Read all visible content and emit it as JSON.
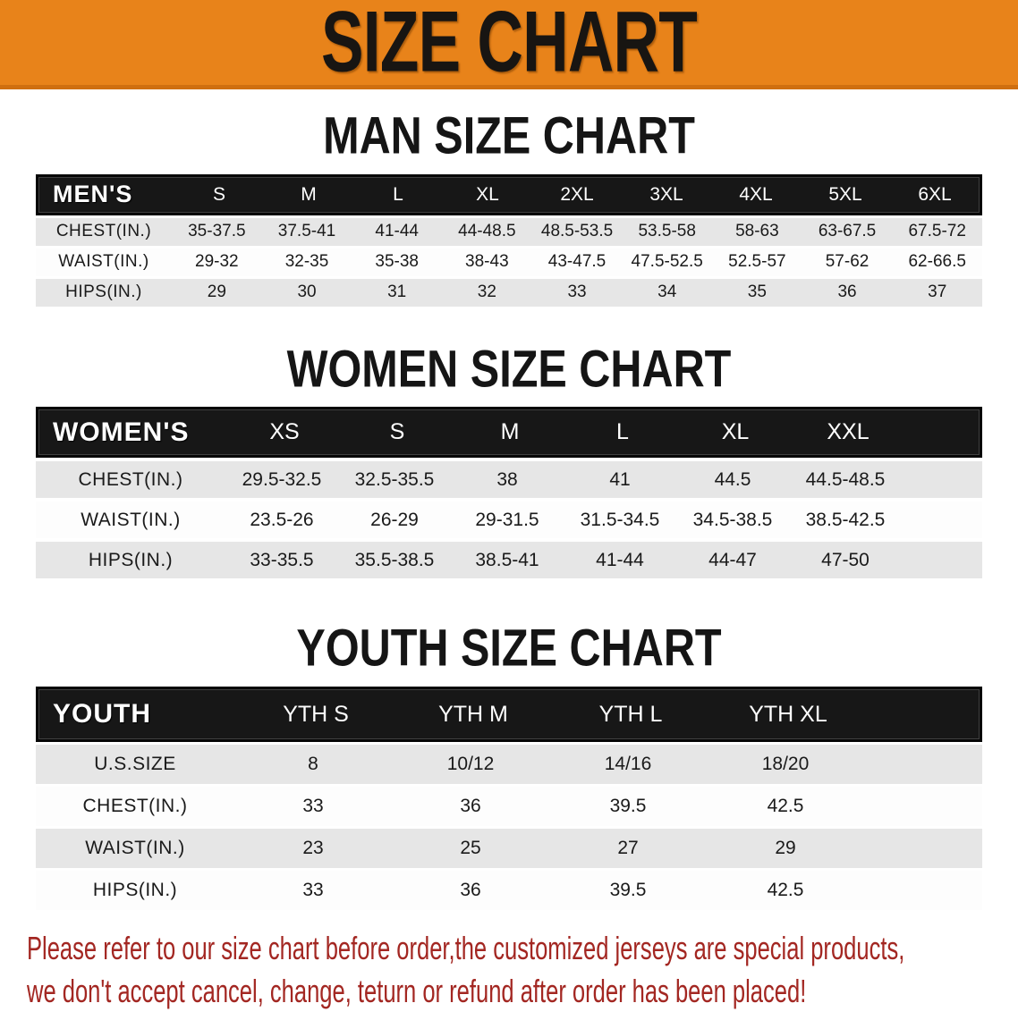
{
  "banner": {
    "title": "SIZE CHART",
    "bg_color": "#E8831A"
  },
  "men": {
    "heading": "MAN SIZE CHART",
    "corner_label": "MEN'S",
    "sizes": [
      "S",
      "M",
      "L",
      "XL",
      "2XL",
      "3XL",
      "4XL",
      "5XL",
      "6XL"
    ],
    "rows": [
      {
        "label": "CHEST(IN.)",
        "values": [
          "35-37.5",
          "37.5-41",
          "41-44",
          "44-48.5",
          "48.5-53.5",
          "53.5-58",
          "58-63",
          "63-67.5",
          "67.5-72"
        ]
      },
      {
        "label": "WAIST(IN.)",
        "values": [
          "29-32",
          "32-35",
          "35-38",
          "38-43",
          "43-47.5",
          "47.5-52.5",
          "52.5-57",
          "57-62",
          "62-66.5"
        ]
      },
      {
        "label": "HIPS(IN.)",
        "values": [
          "29",
          "30",
          "31",
          "32",
          "33",
          "34",
          "35",
          "36",
          "37"
        ]
      }
    ]
  },
  "women": {
    "heading": "WOMEN SIZE CHART",
    "corner_label": "WOMEN'S",
    "sizes": [
      "XS",
      "S",
      "M",
      "L",
      "XL",
      "XXL"
    ],
    "rows": [
      {
        "label": "CHEST(IN.)",
        "values": [
          "29.5-32.5",
          "32.5-35.5",
          "38",
          "41",
          "44.5",
          "44.5-48.5"
        ]
      },
      {
        "label": "WAIST(IN.)",
        "values": [
          "23.5-26",
          "26-29",
          "29-31.5",
          "31.5-34.5",
          "34.5-38.5",
          "38.5-42.5"
        ]
      },
      {
        "label": "HIPS(IN.)",
        "values": [
          "33-35.5",
          "35.5-38.5",
          "38.5-41",
          "41-44",
          "44-47",
          "47-50"
        ]
      }
    ]
  },
  "youth": {
    "heading": "YOUTH SIZE CHART",
    "corner_label": "YOUTH",
    "sizes": [
      "YTH S",
      "YTH M",
      "YTH L",
      "YTH XL"
    ],
    "rows": [
      {
        "label": "U.S.SIZE",
        "values": [
          "8",
          "10/12",
          "14/16",
          "18/20"
        ]
      },
      {
        "label": "CHEST(IN.)",
        "values": [
          "33",
          "36",
          "39.5",
          "42.5"
        ]
      },
      {
        "label": "WAIST(IN.)",
        "values": [
          "23",
          "25",
          "27",
          "29"
        ]
      },
      {
        "label": "HIPS(IN.)",
        "values": [
          "33",
          "36",
          "39.5",
          "42.5"
        ]
      }
    ]
  },
  "footer": {
    "line1": "Please refer to our size chart before order,the customized jerseys are special products,",
    "line2": "we don't accept cancel, change, teturn or refund after order has been placed!",
    "text_color": "#A32722"
  }
}
